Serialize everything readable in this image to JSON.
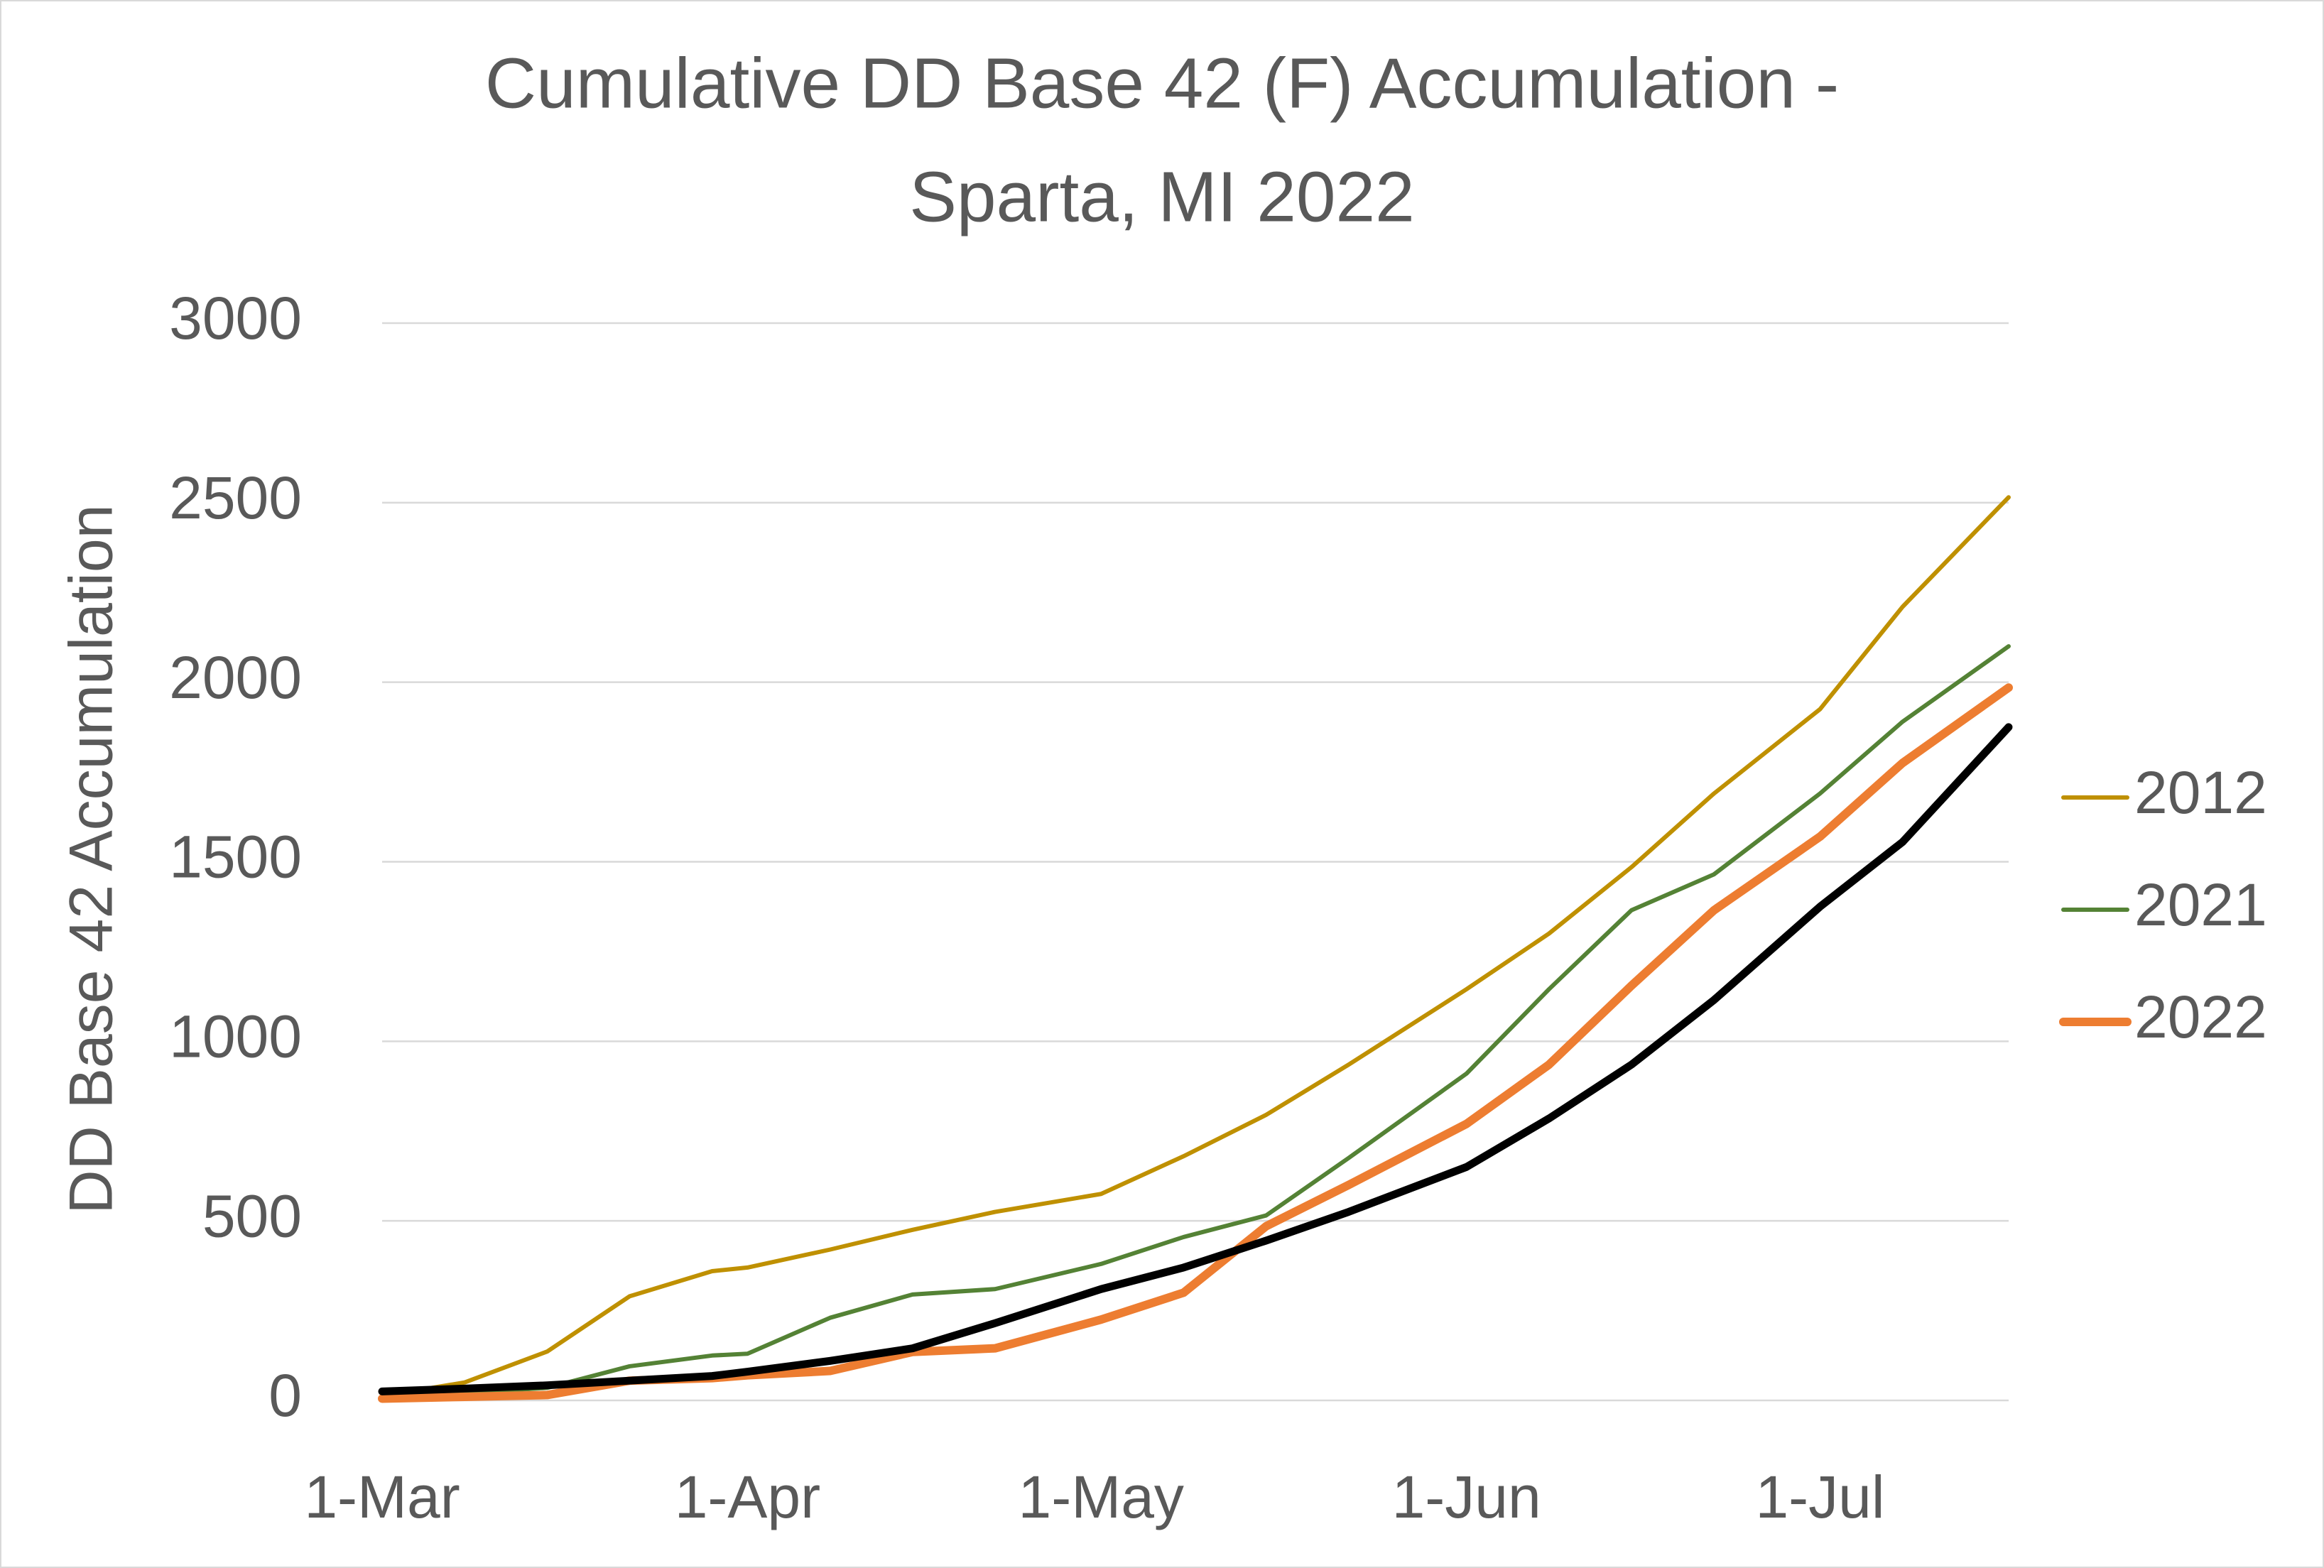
{
  "chart_data": {
    "type": "line",
    "title": [
      "Cumulative DD Base 42 (F) Accumulation -",
      "Sparta, MI 2022"
    ],
    "y_label": "DD Base 42 Accumulation",
    "x": [
      0,
      7,
      14,
      21,
      28,
      31,
      38,
      45,
      52,
      61,
      68,
      75,
      82,
      92,
      99,
      106,
      113,
      122,
      129,
      138
    ],
    "xlim": [
      0,
      138
    ],
    "xticks": [
      {
        "value": 0,
        "label": "1-Mar"
      },
      {
        "value": 31,
        "label": "1-Apr"
      },
      {
        "value": 61,
        "label": "1-May"
      },
      {
        "value": 92,
        "label": "1-Jun"
      },
      {
        "value": 122,
        "label": "1-Jul"
      }
    ],
    "ylim": [
      0,
      3000
    ],
    "yticks": [
      0,
      500,
      1000,
      1500,
      2000,
      2500,
      3000
    ],
    "grid": true,
    "legend": "right",
    "series": [
      {
        "name": "2012",
        "color": "#bf9000",
        "width": 6,
        "values": [
          12,
          50,
          136,
          290,
          360,
          370,
          420,
          475,
          525,
          575,
          680,
          795,
          935,
          1145,
          1300,
          1485,
          1690,
          1925,
          2210,
          2515
        ]
      },
      {
        "name": "2021",
        "color": "#548235",
        "width": 6,
        "values": [
          10,
          20,
          35,
          95,
          125,
          130,
          230,
          295,
          310,
          380,
          455,
          515,
          675,
          910,
          1145,
          1365,
          1465,
          1690,
          1890,
          2100
        ]
      },
      {
        "name": "2022",
        "color": "#ed7d31",
        "width": 12,
        "values": [
          5,
          10,
          15,
          55,
          62,
          70,
          82,
          135,
          145,
          225,
          300,
          485,
          600,
          770,
          935,
          1155,
          1365,
          1570,
          1775,
          1985
        ]
      },
      {
        "name": null,
        "color": "#000000",
        "width": 11,
        "values": [
          25,
          33,
          42,
          55,
          68,
          80,
          110,
          145,
          215,
          310,
          370,
          445,
          525,
          650,
          785,
          935,
          1115,
          1375,
          1555,
          1875
        ]
      }
    ]
  }
}
